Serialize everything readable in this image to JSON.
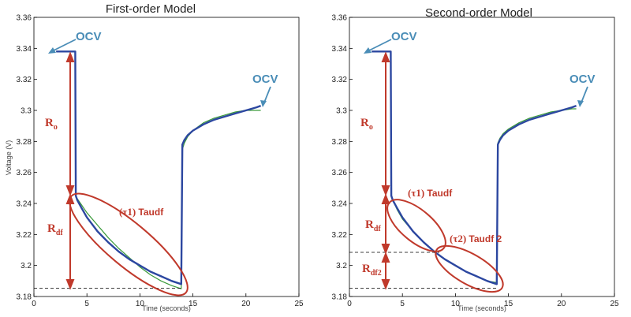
{
  "chart_data": [
    {
      "type": "line",
      "title": "First-order Model",
      "xlabel": "Time (seconds)",
      "ylabel": "Voltage (V)",
      "xlim": [
        0,
        25
      ],
      "ylim": [
        3.18,
        3.36
      ],
      "xticks": [
        "0",
        "5",
        "10",
        "15",
        "20",
        "25"
      ],
      "yticks": [
        "3.18",
        "3.2",
        "3.22",
        "3.24",
        "3.26",
        "3.28",
        "3.3",
        "3.32",
        "3.34",
        "3.36"
      ],
      "series": [
        {
          "color": "#2c47a0",
          "x": [
            2.1,
            3.9,
            3.95,
            4.1,
            4.5,
            5,
            6,
            7,
            8,
            9,
            10,
            11,
            12,
            13,
            13.9,
            14,
            14.2,
            14.5,
            15,
            16,
            17,
            18,
            19,
            20,
            21,
            21.4
          ],
          "y": [
            3.338,
            3.338,
            3.245,
            3.242,
            3.237,
            3.231,
            3.222,
            3.215,
            3.209,
            3.204,
            3.2,
            3.196,
            3.193,
            3.19,
            3.188,
            3.278,
            3.281,
            3.284,
            3.287,
            3.291,
            3.294,
            3.296,
            3.298,
            3.3,
            3.302,
            3.303
          ]
        },
        {
          "color": "#3a9a3a",
          "x": [
            2.1,
            3.9,
            3.95,
            4.1,
            4.5,
            5,
            6,
            7,
            8,
            9,
            10,
            11,
            12,
            13,
            13.9,
            14,
            14.2,
            14.5,
            15,
            16,
            17,
            18,
            19,
            20,
            21,
            21.4
          ],
          "y": [
            3.338,
            3.338,
            3.244,
            3.243,
            3.239,
            3.234,
            3.226,
            3.218,
            3.211,
            3.205,
            3.199,
            3.194,
            3.19,
            3.187,
            3.185,
            3.275,
            3.279,
            3.283,
            3.287,
            3.292,
            3.295,
            3.297,
            3.299,
            3.3,
            3.3,
            3.3
          ]
        }
      ],
      "annotations": [
        "OCV",
        "OCV",
        "R",
        "o",
        "R",
        "df",
        "(τ1) ",
        "Tau",
        "df"
      ]
    },
    {
      "type": "line",
      "title": "Second-order Model",
      "xlabel": "Time (seconds)",
      "ylabel": "",
      "xlim": [
        0,
        25
      ],
      "ylim": [
        3.18,
        3.36
      ],
      "xticks": [
        "0",
        "5",
        "10",
        "15",
        "20",
        "25"
      ],
      "yticks": [
        "3.18",
        "3.2",
        "3.22",
        "3.24",
        "3.26",
        "3.28",
        "3.3",
        "3.32",
        "3.34",
        "3.36"
      ],
      "series": [
        {
          "color": "#2c47a0",
          "x": [
            2.1,
            3.9,
            3.95,
            4.1,
            4.5,
            5,
            6,
            7,
            8,
            9,
            10,
            11,
            12,
            13,
            13.9,
            14,
            14.2,
            14.5,
            15,
            16,
            17,
            18,
            19,
            20,
            21,
            21.4
          ],
          "y": [
            3.338,
            3.338,
            3.245,
            3.242,
            3.237,
            3.231,
            3.222,
            3.215,
            3.209,
            3.204,
            3.2,
            3.196,
            3.193,
            3.19,
            3.188,
            3.278,
            3.281,
            3.284,
            3.287,
            3.291,
            3.294,
            3.296,
            3.298,
            3.3,
            3.302,
            3.303
          ]
        },
        {
          "color": "#3a9a3a",
          "x": [
            2.1,
            3.9,
            3.95,
            4.1,
            4.5,
            5,
            6,
            7,
            8,
            9,
            10,
            11,
            12,
            13,
            13.9,
            14,
            14.2,
            14.5,
            15,
            16,
            17,
            18,
            19,
            20,
            21,
            21.4
          ],
          "y": [
            3.338,
            3.338,
            3.245,
            3.242,
            3.236,
            3.23,
            3.222,
            3.215,
            3.209,
            3.204,
            3.2,
            3.196,
            3.193,
            3.19,
            3.189,
            3.279,
            3.282,
            3.285,
            3.288,
            3.292,
            3.295,
            3.297,
            3.299,
            3.3,
            3.301,
            3.301
          ]
        }
      ],
      "annotations": [
        "OCV",
        "OCV",
        "R",
        "o",
        "R",
        "df",
        "R",
        "df2",
        "(τ1) ",
        "Tau",
        "df",
        "(τ2) ",
        "Tau",
        "df 2"
      ]
    }
  ],
  "labels": {
    "ocv": "OCV",
    "r": "R",
    "sub_o": "o",
    "sub_df": "df",
    "sub_df2": "df2",
    "tau1_prefix": "(τ1) ",
    "tau2_prefix": "(τ2) ",
    "tau_word": "Tau",
    "tau1_sub": "df",
    "tau2_sub": "df 2"
  },
  "colors": {
    "measured": "#2c47a0",
    "model": "#3a9a3a",
    "annotation": "#c0392b",
    "ocv": "#4a8db7"
  }
}
